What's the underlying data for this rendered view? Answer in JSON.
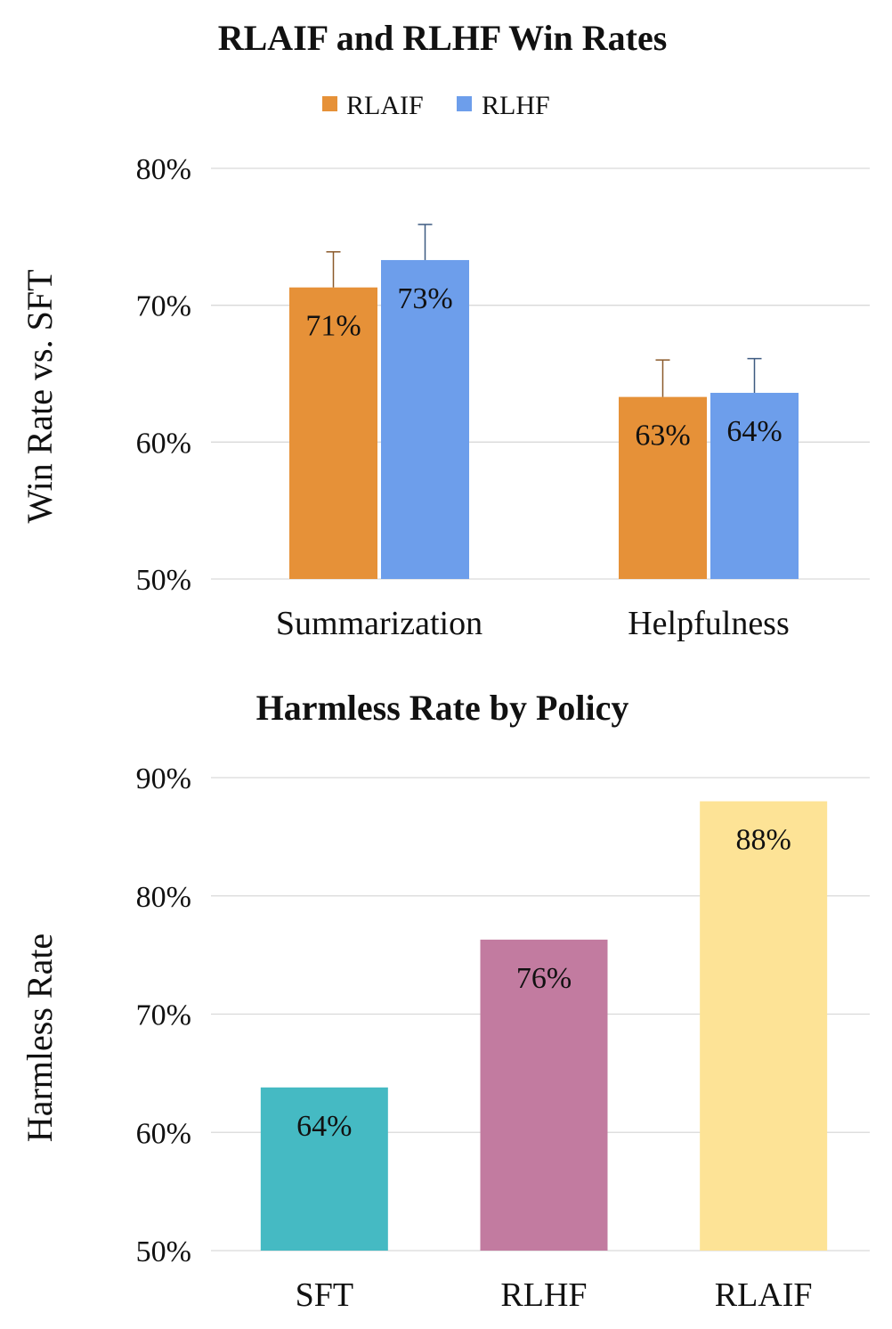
{
  "chart_data": [
    {
      "type": "bar",
      "title": "RLAIF and RLHF Win Rates",
      "ylabel": "Win Rate vs. SFT",
      "xlabel": "",
      "categories": [
        "Summarization",
        "Helpfulness"
      ],
      "series": [
        {
          "name": "RLAIF",
          "color": "#E69138",
          "errColor": "#8B5A2B",
          "values": [
            71.3,
            63.3
          ],
          "errors": [
            2.6,
            2.7
          ],
          "labels": [
            "71%",
            "63%"
          ]
        },
        {
          "name": "RLHF",
          "color": "#6D9EEB",
          "errColor": "#3D5A80",
          "values": [
            73.3,
            63.6
          ],
          "errors": [
            2.6,
            2.5
          ],
          "labels": [
            "73%",
            "64%"
          ]
        }
      ],
      "ylim": [
        50,
        80
      ],
      "yticks": [
        50,
        60,
        70,
        80
      ],
      "ytick_labels": [
        "50%",
        "60%",
        "70%",
        "80%"
      ],
      "grid": true,
      "legend": "top-center"
    },
    {
      "type": "bar",
      "title": "Harmless Rate by Policy",
      "ylabel": "Harmless Rate",
      "xlabel": "",
      "categories": [
        "SFT",
        "RLHF",
        "RLAIF"
      ],
      "values": [
        63.8,
        76.3,
        88.0
      ],
      "labels": [
        "64%",
        "76%",
        "88%"
      ],
      "colors": [
        "#45BAC3",
        "#C27BA0",
        "#FDE396"
      ],
      "ylim": [
        50,
        90
      ],
      "yticks": [
        50,
        60,
        70,
        80,
        90
      ],
      "ytick_labels": [
        "50%",
        "60%",
        "70%",
        "80%",
        "90%"
      ],
      "grid": true,
      "legend": "none"
    }
  ]
}
